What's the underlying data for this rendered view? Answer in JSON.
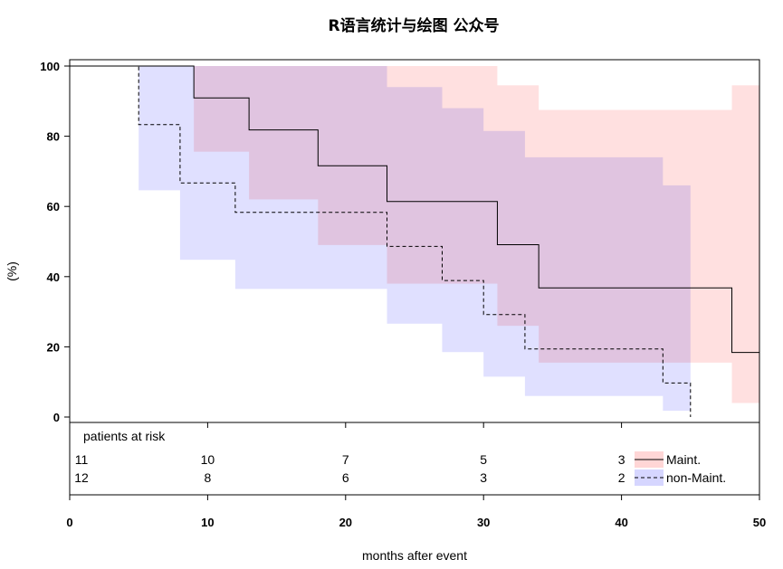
{
  "chart_data": {
    "type": "line",
    "subtype": "kaplan-meier",
    "title": "R语言统计与绘图 公众号",
    "xlabel": "months after event",
    "ylabel": "(%)",
    "xlim": [
      0,
      50
    ],
    "ylim": [
      0,
      100
    ],
    "x_ticks": [
      "0",
      "10",
      "20",
      "30",
      "40",
      "50"
    ],
    "y_ticks": [
      "0",
      "20",
      "40",
      "60",
      "80",
      "100"
    ],
    "grid": false,
    "legend_position": "bottom-right",
    "series": [
      {
        "name": "Maint.",
        "line_style": "solid",
        "ci_color": "#ffd6d6",
        "times": [
          0,
          9,
          13,
          18,
          23,
          31,
          34,
          48,
          50
        ],
        "survival": [
          100,
          90.9,
          81.8,
          71.6,
          61.4,
          49.1,
          36.8,
          18.4,
          18.4
        ],
        "ci_lower": [
          100,
          75.6,
          62.0,
          49.0,
          38.0,
          26.0,
          15.5,
          4.0,
          4.0
        ],
        "ci_upper": [
          100,
          100,
          100,
          100,
          100,
          94.5,
          87.5,
          94.5,
          94.5
        ]
      },
      {
        "name": "non-Maint.",
        "line_style": "dashed",
        "ci_color": "#d6d6ff",
        "times": [
          0,
          5,
          8,
          12,
          23,
          27,
          30,
          33,
          43,
          45
        ],
        "survival": [
          100,
          83.3,
          66.7,
          58.3,
          48.6,
          38.9,
          29.2,
          19.4,
          9.7,
          0
        ],
        "ci_lower": [
          100,
          64.6,
          44.8,
          36.5,
          26.6,
          18.5,
          11.5,
          6.0,
          1.8,
          0
        ],
        "ci_upper": [
          100,
          100,
          100,
          100,
          94.0,
          88.0,
          81.5,
          74.0,
          66.0,
          62.0
        ]
      }
    ],
    "risk_table": {
      "title": "patients at risk",
      "times": [
        0,
        10,
        20,
        30,
        40
      ],
      "rows": [
        {
          "series": "Maint.",
          "counts": [
            "11",
            "10",
            "7",
            "5",
            "3"
          ]
        },
        {
          "series": "non-Maint.",
          "counts": [
            "12",
            "8",
            "6",
            "3",
            "2"
          ]
        }
      ]
    }
  }
}
